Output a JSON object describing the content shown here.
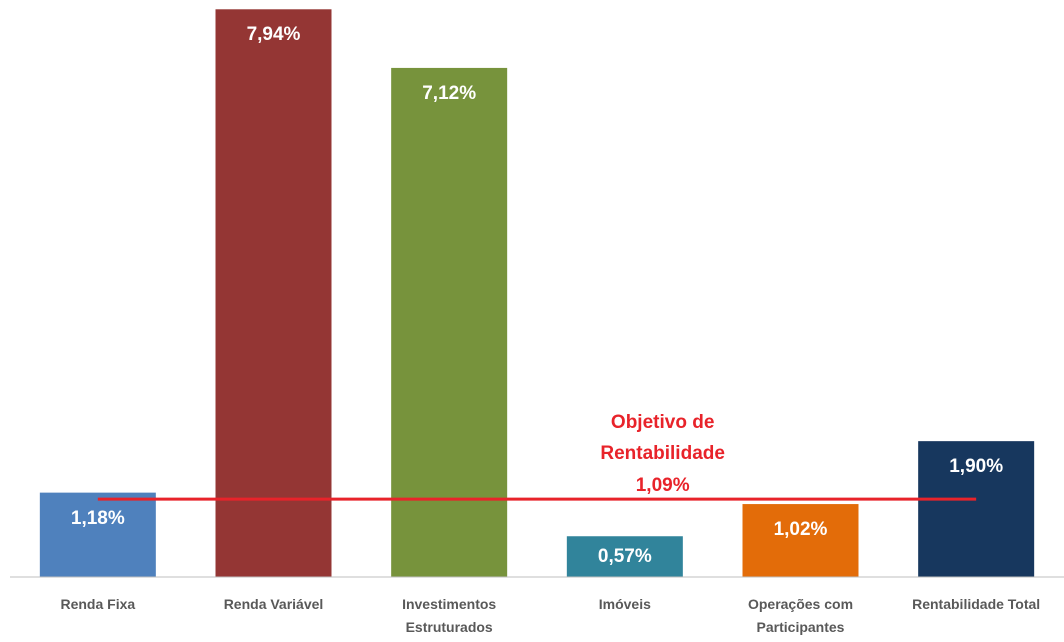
{
  "chart_data": {
    "type": "bar",
    "categories": [
      "Renda Fixa",
      "Renda Variável",
      "Investimentos Estruturados",
      "Imóveis",
      "Operações com Participantes",
      "Rentabilidade Total"
    ],
    "values": [
      1.18,
      7.94,
      7.12,
      0.57,
      1.02,
      1.9
    ],
    "value_labels": [
      "1,18%",
      "7,94%",
      "7,12%",
      "0,57%",
      "1,02%",
      "1,90%"
    ],
    "colors": [
      "#4f81bd",
      "#943634",
      "#77933c",
      "#31849b",
      "#e36c09",
      "#17375e"
    ],
    "ylim": [
      0,
      8
    ],
    "reference": {
      "value": 1.09,
      "label": "Objetivo de Rentabilidade",
      "value_label": "1,09%",
      "color": "#e8232a"
    }
  }
}
